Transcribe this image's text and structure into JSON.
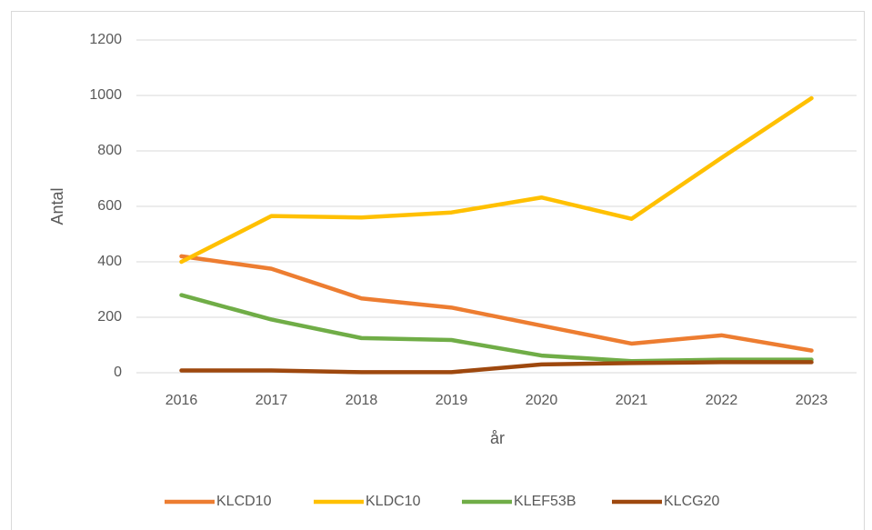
{
  "chart_data": {
    "type": "line",
    "categories": [
      "2016",
      "2017",
      "2018",
      "2019",
      "2020",
      "2021",
      "2022",
      "2023"
    ],
    "series": [
      {
        "name": "KLCD10",
        "color": "#ED7D31",
        "values": [
          420,
          375,
          268,
          235,
          170,
          105,
          135,
          80
        ]
      },
      {
        "name": "KLDC10",
        "color": "#FFC000",
        "values": [
          400,
          565,
          560,
          578,
          632,
          555,
          775,
          990
        ]
      },
      {
        "name": "KLEF53B",
        "color": "#70AD47",
        "values": [
          280,
          192,
          125,
          118,
          62,
          42,
          47,
          47
        ]
      },
      {
        "name": "KLCG20",
        "color": "#9E480E",
        "values": [
          8,
          8,
          2,
          2,
          30,
          35,
          38,
          38
        ]
      }
    ],
    "y_label": "Antal",
    "x_label": "år",
    "ylim": [
      0,
      1200
    ],
    "yticks": [
      0,
      200,
      400,
      600,
      800,
      1000,
      1200
    ],
    "grid": true,
    "legend": "bottom"
  }
}
